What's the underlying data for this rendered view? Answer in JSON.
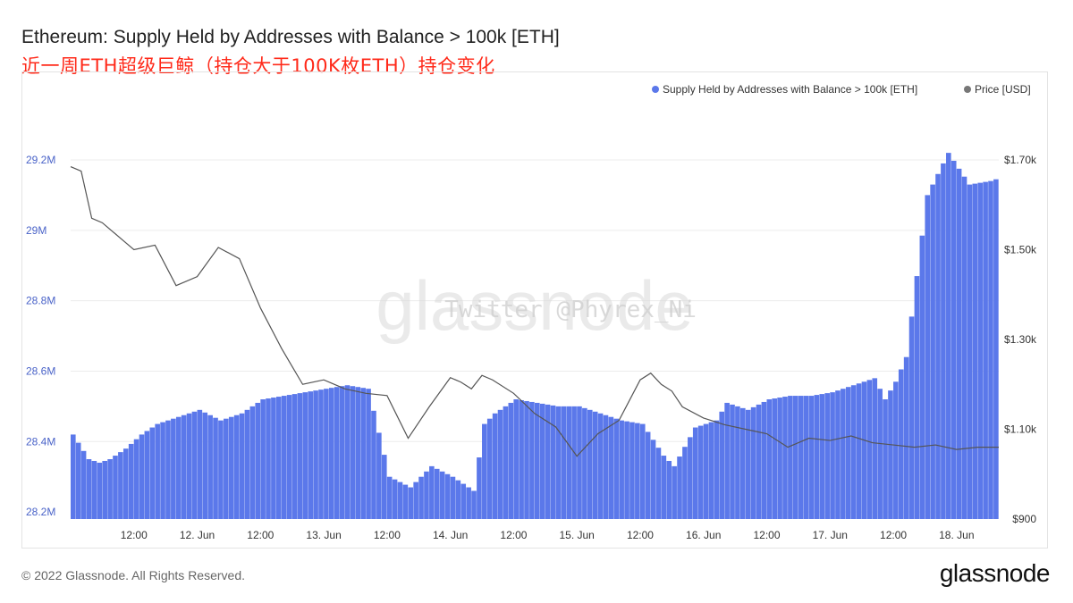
{
  "header": {
    "title": "Ethereum: Supply Held by Addresses with Balance > 100k [ETH]",
    "subtitle": "近一周ETH超级巨鲸（持仓大于100K枚ETH）持仓变化"
  },
  "footer": {
    "copyright": "© 2022 Glassnode. All Rights Reserved.",
    "logo": "glassnode"
  },
  "watermarks": {
    "brand": "glassnode",
    "twitter": "Twitter @Phyrex_Ni"
  },
  "colors": {
    "bars": "#5b78ea",
    "price_line": "#555555",
    "left_axis_text": "#4a63c8",
    "axis_text": "#333333",
    "grid": "#ececec",
    "subtitle": "#ff2a1a"
  },
  "chart_data": {
    "type": "bar",
    "title": "Ethereum: Supply Held by Addresses with Balance > 100k [ETH]",
    "legend_position": "top-right",
    "grid": true,
    "x_ticks": [
      "12:00",
      "12. Jun",
      "12:00",
      "13. Jun",
      "12:00",
      "14. Jun",
      "12:00",
      "15. Jun",
      "12:00",
      "16. Jun",
      "12:00",
      "17. Jun",
      "12:00",
      "18. Jun"
    ],
    "x_range_hours": [
      -24,
      152
    ],
    "y_left": {
      "label": "Supply Held by Addresses with Balance > 100k [ETH]",
      "ticks": [
        "29.2M",
        "29M",
        "28.8M",
        "28.6M",
        "28.4M",
        "28.2M"
      ],
      "tick_values": [
        29200000,
        29000000,
        28800000,
        28600000,
        28400000,
        28200000
      ],
      "range": [
        28180000,
        29200000
      ]
    },
    "y_right": {
      "label": "Price [USD]",
      "ticks": [
        "$1.70k",
        "$1.50k",
        "$1.30k",
        "$1.10k",
        "$900"
      ],
      "tick_values": [
        1700,
        1500,
        1300,
        1100,
        900
      ],
      "range": [
        900,
        1700
      ]
    },
    "series": [
      {
        "name": "Supply Held by Addresses with Balance > 100k [ETH]",
        "type": "bar",
        "axis": "left",
        "x_hours": [
          -24,
          -21,
          -19,
          -17,
          -14,
          -11,
          -8,
          -4,
          0,
          4,
          8,
          12,
          16,
          20,
          24,
          28,
          32,
          36,
          40,
          44,
          48,
          52,
          54,
          56,
          60,
          64,
          68,
          72,
          76,
          80,
          84,
          88,
          90,
          94,
          98,
          100,
          104,
          108,
          112,
          116,
          120,
          124,
          128,
          130,
          132,
          134,
          138,
          142,
          146,
          150,
          152
        ],
        "values": [
          28420000,
          28350000,
          28340000,
          28350000,
          28380000,
          28420000,
          28450000,
          28470000,
          28490000,
          28460000,
          28480000,
          28520000,
          28530000,
          28540000,
          28550000,
          28560000,
          28550000,
          28300000,
          28270000,
          28330000,
          28300000,
          28260000,
          28450000,
          28480000,
          28520000,
          28510000,
          28500000,
          28500000,
          28480000,
          28460000,
          28450000,
          28360000,
          28330000,
          28440000,
          28460000,
          28510000,
          28490000,
          28520000,
          28530000,
          28530000,
          28540000,
          28560000,
          28580000,
          28520000,
          28570000,
          28640000,
          29100000,
          29220000,
          29130000,
          29140000,
          29150000
        ]
      },
      {
        "name": "Price [USD]",
        "type": "line",
        "axis": "right",
        "x_hours": [
          -24,
          -22,
          -20,
          -18,
          -16,
          -14,
          -12,
          -8,
          -4,
          0,
          4,
          8,
          12,
          16,
          18,
          20,
          24,
          28,
          32,
          36,
          40,
          44,
          48,
          50,
          52,
          54,
          56,
          60,
          64,
          68,
          72,
          76,
          80,
          84,
          86,
          88,
          90,
          92,
          96,
          100,
          104,
          108,
          112,
          116,
          120,
          124,
          128,
          132,
          136,
          140,
          144,
          148,
          152
        ],
        "values": [
          1685,
          1675,
          1570,
          1560,
          1540,
          1520,
          1500,
          1510,
          1420,
          1440,
          1505,
          1480,
          1370,
          1280,
          1240,
          1200,
          1210,
          1190,
          1180,
          1175,
          1080,
          1150,
          1215,
          1205,
          1190,
          1220,
          1210,
          1180,
          1135,
          1105,
          1040,
          1090,
          1120,
          1210,
          1225,
          1200,
          1185,
          1150,
          1125,
          1110,
          1100,
          1090,
          1060,
          1080,
          1075,
          1085,
          1070,
          1065,
          1060,
          1065,
          1055,
          1060,
          1060
        ]
      }
    ]
  }
}
